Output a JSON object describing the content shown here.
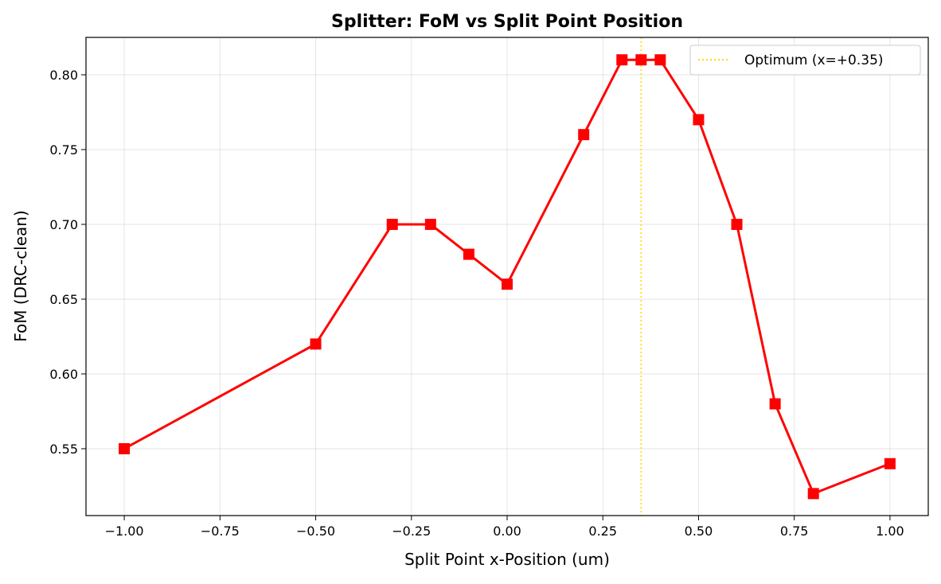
{
  "chart_data": {
    "type": "line",
    "title": "Splitter: FoM vs Split Point Position",
    "xlabel": "Split Point x-Position (um)",
    "ylabel": "FoM (DRC-clean)",
    "xlim": [
      -1.1,
      1.1
    ],
    "ylim": [
      0.5053,
      0.825
    ],
    "xticks": [
      -1.0,
      -0.75,
      -0.5,
      -0.25,
      0.0,
      0.25,
      0.5,
      0.75,
      1.0
    ],
    "xtick_labels": [
      "−1.00",
      "−0.75",
      "−0.50",
      "−0.25",
      "0.00",
      "0.25",
      "0.50",
      "0.75",
      "1.00"
    ],
    "yticks": [
      0.55,
      0.6,
      0.65,
      0.7,
      0.75,
      0.8
    ],
    "ytick_labels": [
      "0.55",
      "0.60",
      "0.65",
      "0.70",
      "0.75",
      "0.80"
    ],
    "grid": true,
    "series": [
      {
        "color": "#ff0000",
        "marker": "square",
        "x": [
          -1.0,
          -0.5,
          -0.3,
          -0.2,
          -0.1,
          0.0,
          0.2,
          0.3,
          0.35,
          0.4,
          0.5,
          0.6,
          0.7,
          0.8,
          1.0
        ],
        "y": [
          0.55,
          0.62,
          0.7,
          0.7,
          0.68,
          0.66,
          0.76,
          0.81,
          0.81,
          0.81,
          0.77,
          0.7,
          0.58,
          0.52,
          0.54
        ]
      }
    ],
    "vline": {
      "x": 0.35,
      "color": "#ffd700",
      "style": "dotted",
      "name": "Optimum (x=+0.35)"
    },
    "legend": {
      "placement": "top-right",
      "entries": [
        "Optimum (x=+0.35)"
      ]
    }
  }
}
